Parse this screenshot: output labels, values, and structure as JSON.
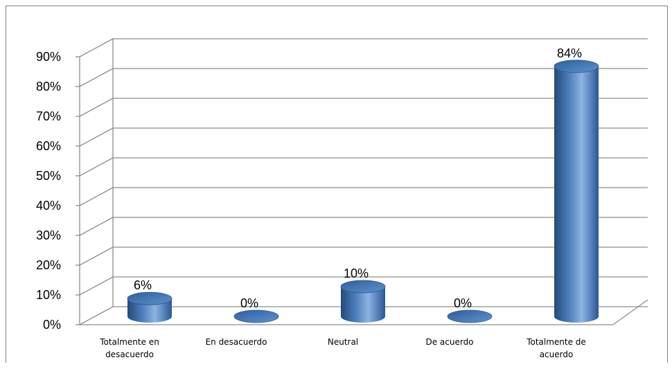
{
  "chart_data": {
    "type": "bar",
    "style": "3d-cylinder",
    "categories": [
      [
        "Totalmente en",
        "desacuerdo"
      ],
      [
        "En desacuerdo"
      ],
      [
        "Neutral"
      ],
      [
        "De acuerdo"
      ],
      [
        "Totalmente de",
        "acuerdo"
      ]
    ],
    "values": [
      6,
      0,
      10,
      0,
      84
    ],
    "data_labels": [
      "6%",
      "0%",
      "10%",
      "0%",
      "84%"
    ],
    "y_ticks": [
      "0%",
      "10%",
      "20%",
      "30%",
      "40%",
      "50%",
      "60%",
      "70%",
      "80%",
      "90%"
    ],
    "ylim": [
      0,
      90
    ],
    "grid": true,
    "legend": "none",
    "colors": {
      "bar": "#4f81bd",
      "bar_dark": "#244a7a",
      "bar_light": "#8db3e2",
      "grid": "#8c8c8c"
    }
  }
}
